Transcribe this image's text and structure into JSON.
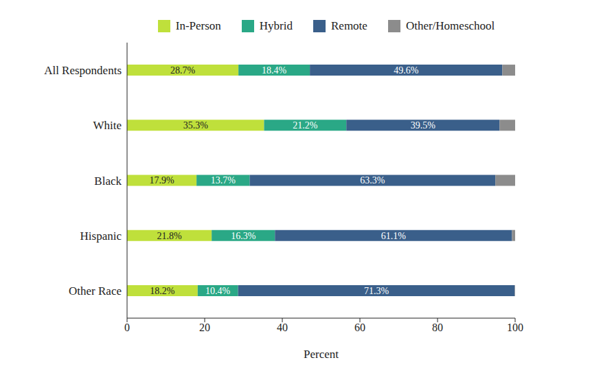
{
  "chart_data": {
    "type": "bar",
    "orientation": "horizontal",
    "stacked": true,
    "legend": "top",
    "x_label": "Percent",
    "categories": [
      "All Respondents",
      "White",
      "Black",
      "Hispanic",
      "Other Race"
    ],
    "xlim": [
      0,
      100
    ],
    "xticks": [
      0,
      20,
      40,
      60,
      80,
      100
    ],
    "series": [
      {
        "name": "In-Person",
        "color": "#bfe03b",
        "data_labels": true,
        "values": [
          28.7,
          35.3,
          17.9,
          21.8,
          18.2
        ],
        "value_labels": [
          "28.7%",
          "35.3%",
          "17.9%",
          "21.8%",
          "18.2%"
        ]
      },
      {
        "name": "Hybrid",
        "color": "#2aa886",
        "data_labels": true,
        "values": [
          18.4,
          21.2,
          13.7,
          16.3,
          10.4
        ],
        "value_labels": [
          "18.4%",
          "21.2%",
          "13.7%",
          "16.3%",
          "10.4%"
        ]
      },
      {
        "name": "Remote",
        "color": "#3a5f8a",
        "data_labels": true,
        "values": [
          49.6,
          39.5,
          63.3,
          61.1,
          71.3
        ],
        "value_labels": [
          "49.6%",
          "39.5%",
          "63.3%",
          "61.1%",
          "71.3%"
        ]
      },
      {
        "name": "Other/Homeschool",
        "color": "#8c8c8c",
        "data_labels": false,
        "values": [
          3.3,
          4.0,
          5.1,
          0.8,
          0.1
        ]
      }
    ]
  }
}
